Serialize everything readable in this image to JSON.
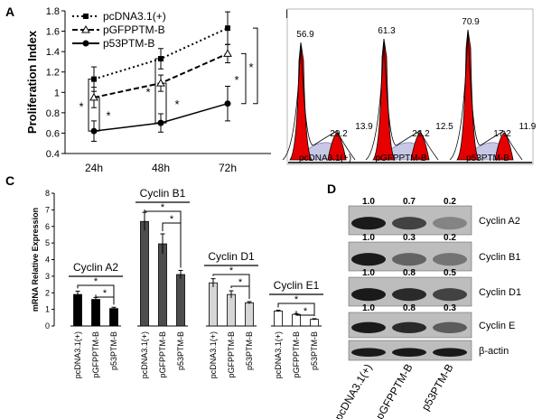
{
  "panels": {
    "a": "A",
    "b": "B",
    "c": "C",
    "d": "D"
  },
  "significance": "*",
  "chart_data": [
    {
      "panel": "A",
      "type": "line",
      "ylabel": "Proliferation Index",
      "categories": [
        "24h",
        "48h",
        "72h"
      ],
      "ylim": [
        0.4,
        1.8
      ],
      "yticks": [
        "0.4",
        "0.6",
        "0.8",
        "1",
        "1.2",
        "1.4",
        "1.6",
        "1.8"
      ],
      "legend_position": "top-left",
      "series": [
        {
          "name": "pcDNA3.1(+)",
          "values": [
            1.13,
            1.33,
            1.63
          ],
          "errors": [
            0.12,
            0.1,
            0.16
          ],
          "style": "dotted",
          "marker": "square"
        },
        {
          "name": "pGFPPTM-B",
          "values": [
            0.95,
            1.09,
            1.38
          ],
          "errors": [
            0.1,
            0.08,
            0.09
          ],
          "style": "dashed",
          "marker": "triangle"
        },
        {
          "name": "p53PTM-B",
          "values": [
            0.62,
            0.7,
            0.89
          ],
          "errors": [
            0.1,
            0.09,
            0.17
          ],
          "style": "solid",
          "marker": "circle"
        }
      ]
    },
    {
      "panel": "B",
      "type": "histogram",
      "samples": [
        {
          "name": "pcDNA3.1(+)",
          "g1": "56.9",
          "s": "29.2",
          "g2m": "13.9"
        },
        {
          "name": "pGFPPTM-B",
          "g1": "61.3",
          "s": "26.2",
          "g2m": "12.5"
        },
        {
          "name": "p53PTM-B",
          "g1": "70.9",
          "s": "17.2",
          "g2m": "11.9"
        }
      ]
    },
    {
      "panel": "C",
      "type": "bar",
      "ylabel": "mRNA Relative Expression",
      "ylim": [
        0,
        8
      ],
      "yticks": [
        "0",
        "1",
        "2",
        "3",
        "4",
        "5",
        "6",
        "7",
        "8"
      ],
      "groups": [
        {
          "name": "Cyclin A2",
          "color": "#000000",
          "values": [
            1.9,
            1.6,
            1.05
          ],
          "errors": [
            0.2,
            0.12,
            0.08
          ],
          "categories": [
            "pcDNA3.1(+)",
            "pGFPPTM-B",
            "p53PTM-B"
          ]
        },
        {
          "name": "Cyclin B1",
          "color": "#4d4d4d",
          "values": [
            6.3,
            4.95,
            3.1
          ],
          "errors": [
            0.55,
            0.6,
            0.25
          ],
          "categories": [
            "pcDNA3.1(+)",
            "pGFPPTM-B",
            "p53PTM-B"
          ]
        },
        {
          "name": "Cyclin D1",
          "color": "#d6d6d6",
          "values": [
            2.6,
            1.9,
            1.4
          ],
          "errors": [
            0.25,
            0.22,
            0.07
          ],
          "categories": [
            "pcDNA3.1(+)",
            "pGFPPTM-B",
            "p53PTM-B"
          ]
        },
        {
          "name": "Cyclin E1",
          "color": "#ffffff",
          "values": [
            0.9,
            0.7,
            0.4
          ],
          "errors": [
            0.05,
            0.05,
            0.04
          ],
          "categories": [
            "pcDNA3.1(+)",
            "pGFPPTM-B",
            "p53PTM-B"
          ]
        }
      ]
    },
    {
      "panel": "D",
      "type": "western-blot",
      "lanes": [
        "pcDNA3.1(+)",
        "pGFPPTM-B",
        "p53PTM-B"
      ],
      "proteins": [
        {
          "name": "Cyclin A2",
          "ratios": [
            "1.0",
            "0.7",
            "0.2"
          ]
        },
        {
          "name": "Cyclin B1",
          "ratios": [
            "1.0",
            "0.3",
            "0.2"
          ]
        },
        {
          "name": "Cyclin D1",
          "ratios": [
            "1.0",
            "0.8",
            "0.5"
          ]
        },
        {
          "name": "Cyclin E",
          "ratios": [
            "1.0",
            "0.8",
            "0.3"
          ]
        },
        {
          "name": "β-actin",
          "ratios": []
        }
      ]
    }
  ]
}
